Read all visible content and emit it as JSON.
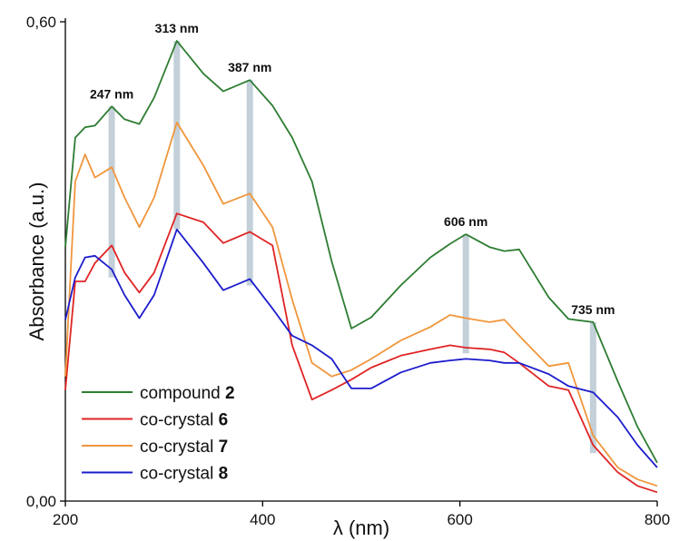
{
  "chart_data": {
    "type": "line",
    "x_label": "λ (nm)",
    "y_label": "Absorbance (a.u.)",
    "xlim": [
      200,
      800
    ],
    "ylim": [
      0,
      0.6
    ],
    "xticks": [
      200,
      400,
      600,
      800
    ],
    "yticks": [
      {
        "value": 0,
        "label": "0,00"
      },
      {
        "value": 0.6,
        "label": "0,60"
      }
    ],
    "x": [
      200,
      210,
      220,
      230,
      247,
      260,
      275,
      290,
      313,
      340,
      360,
      387,
      410,
      430,
      450,
      470,
      490,
      510,
      540,
      570,
      590,
      606,
      630,
      645,
      660,
      690,
      710,
      735,
      760,
      780,
      800
    ],
    "series": [
      {
        "name": "compound 2",
        "color": "#2e7d32",
        "values": [
          0.318,
          0.455,
          0.468,
          0.47,
          0.494,
          0.478,
          0.472,
          0.505,
          0.576,
          0.535,
          0.513,
          0.527,
          0.495,
          0.455,
          0.4,
          0.3,
          0.216,
          0.23,
          0.27,
          0.305,
          0.322,
          0.334,
          0.318,
          0.313,
          0.315,
          0.255,
          0.228,
          0.224,
          0.15,
          0.093,
          0.048
        ]
      },
      {
        "name": "co-crystal 6",
        "color": "#e02424",
        "values": [
          0.139,
          0.275,
          0.275,
          0.298,
          0.32,
          0.286,
          0.261,
          0.286,
          0.36,
          0.349,
          0.323,
          0.337,
          0.32,
          0.195,
          0.127,
          0.139,
          0.152,
          0.167,
          0.182,
          0.19,
          0.195,
          0.192,
          0.19,
          0.186,
          0.173,
          0.144,
          0.139,
          0.07,
          0.036,
          0.019,
          0.011
        ]
      },
      {
        "name": "co-crystal 7",
        "color": "#f0963c",
        "values": [
          0.156,
          0.4,
          0.434,
          0.405,
          0.418,
          0.38,
          0.343,
          0.38,
          0.474,
          0.42,
          0.372,
          0.385,
          0.343,
          0.252,
          0.173,
          0.156,
          0.164,
          0.178,
          0.201,
          0.218,
          0.233,
          0.229,
          0.224,
          0.227,
          0.207,
          0.169,
          0.173,
          0.082,
          0.042,
          0.027,
          0.019
        ]
      },
      {
        "name": "co-crystal 8",
        "color": "#1c1ccc",
        "values": [
          0.227,
          0.28,
          0.305,
          0.307,
          0.29,
          0.258,
          0.229,
          0.258,
          0.34,
          0.298,
          0.264,
          0.278,
          0.241,
          0.207,
          0.195,
          0.178,
          0.141,
          0.141,
          0.161,
          0.173,
          0.176,
          0.178,
          0.176,
          0.173,
          0.173,
          0.159,
          0.144,
          0.136,
          0.105,
          0.07,
          0.042
        ]
      }
    ],
    "annotations": [
      {
        "text": "247 nm",
        "x": 247,
        "ylow": 0.28,
        "yhigh": 0.494
      },
      {
        "text": "313 nm",
        "x": 313,
        "ylow": 0.34,
        "yhigh": 0.576
      },
      {
        "text": "387 nm",
        "x": 387,
        "ylow": 0.27,
        "yhigh": 0.527
      },
      {
        "text": "606 nm",
        "x": 606,
        "ylow": 0.185,
        "yhigh": 0.334
      },
      {
        "text": "735 nm",
        "x": 735,
        "ylow": 0.06,
        "yhigh": 0.224
      }
    ]
  }
}
